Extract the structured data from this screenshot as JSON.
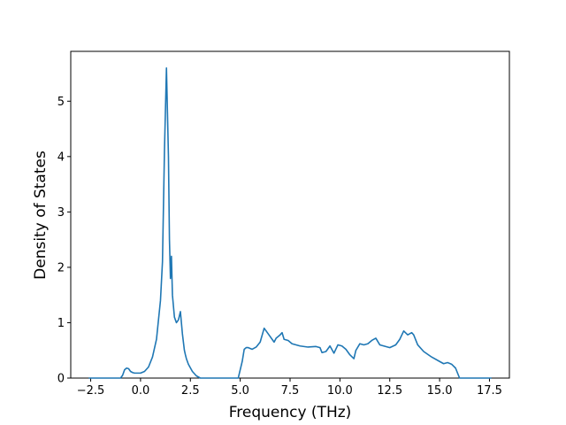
{
  "chart_data": {
    "type": "line",
    "title": "",
    "xlabel": "Frequency (THz)",
    "ylabel": "Density of States",
    "xlim": [
      -3.5,
      18.5
    ],
    "ylim": [
      0,
      5.9
    ],
    "xticks": [
      -2.5,
      0.0,
      2.5,
      5.0,
      7.5,
      10.0,
      12.5,
      15.0,
      17.5
    ],
    "xtick_labels": [
      "−2.5",
      "0.0",
      "2.5",
      "5.0",
      "7.5",
      "10.0",
      "12.5",
      "15.0",
      "17.5"
    ],
    "yticks": [
      0,
      1,
      2,
      3,
      4,
      5
    ],
    "ytick_labels": [
      "0",
      "1",
      "2",
      "3",
      "4",
      "5"
    ],
    "grid": false,
    "line_color": "#1f77b4",
    "series": [
      {
        "x": [
          -2.6,
          -1.0,
          -0.9,
          -0.8,
          -0.7,
          -0.6,
          -0.5,
          -0.4,
          -0.3,
          0.0,
          0.2,
          0.4,
          0.6,
          0.8,
          1.0,
          1.1,
          1.2,
          1.3,
          1.4,
          1.45,
          1.5,
          1.55,
          1.6,
          1.7,
          1.75,
          1.8,
          1.9,
          2.0,
          2.1,
          2.2,
          2.25,
          2.3,
          2.4,
          2.6,
          2.8,
          3.0,
          3.2,
          4.9,
          5.0,
          5.1,
          5.2,
          5.3,
          5.4,
          5.6,
          5.8,
          6.0,
          6.2,
          6.3,
          6.5,
          6.7,
          6.8,
          7.0,
          7.1,
          7.2,
          7.4,
          7.6,
          8.0,
          8.4,
          8.8,
          9.0,
          9.1,
          9.3,
          9.5,
          9.7,
          9.9,
          10.1,
          10.3,
          10.5,
          10.7,
          10.8,
          11.0,
          11.2,
          11.4,
          11.6,
          11.8,
          12.0,
          12.2,
          12.5,
          12.8,
          13.0,
          13.2,
          13.4,
          13.6,
          13.7,
          13.9,
          14.2,
          14.6,
          15.0,
          15.2,
          15.4,
          15.6,
          15.8,
          16.0,
          16.2,
          17.6
        ],
        "y": [
          0.0,
          0.0,
          0.05,
          0.15,
          0.18,
          0.17,
          0.12,
          0.1,
          0.09,
          0.09,
          0.12,
          0.2,
          0.38,
          0.7,
          1.4,
          2.1,
          4.1,
          5.6,
          4.0,
          2.5,
          1.8,
          2.2,
          1.5,
          1.1,
          1.05,
          1.0,
          1.05,
          1.2,
          0.8,
          0.5,
          0.42,
          0.35,
          0.25,
          0.12,
          0.04,
          0.0,
          0.0,
          0.0,
          0.15,
          0.3,
          0.52,
          0.55,
          0.55,
          0.52,
          0.56,
          0.65,
          0.9,
          0.85,
          0.75,
          0.65,
          0.72,
          0.78,
          0.82,
          0.7,
          0.68,
          0.62,
          0.58,
          0.56,
          0.57,
          0.55,
          0.46,
          0.48,
          0.58,
          0.45,
          0.6,
          0.58,
          0.52,
          0.42,
          0.35,
          0.5,
          0.62,
          0.6,
          0.62,
          0.68,
          0.72,
          0.6,
          0.58,
          0.55,
          0.6,
          0.7,
          0.85,
          0.78,
          0.82,
          0.78,
          0.6,
          0.48,
          0.38,
          0.3,
          0.26,
          0.28,
          0.25,
          0.18,
          0.0,
          0.0,
          0.0
        ]
      }
    ]
  }
}
